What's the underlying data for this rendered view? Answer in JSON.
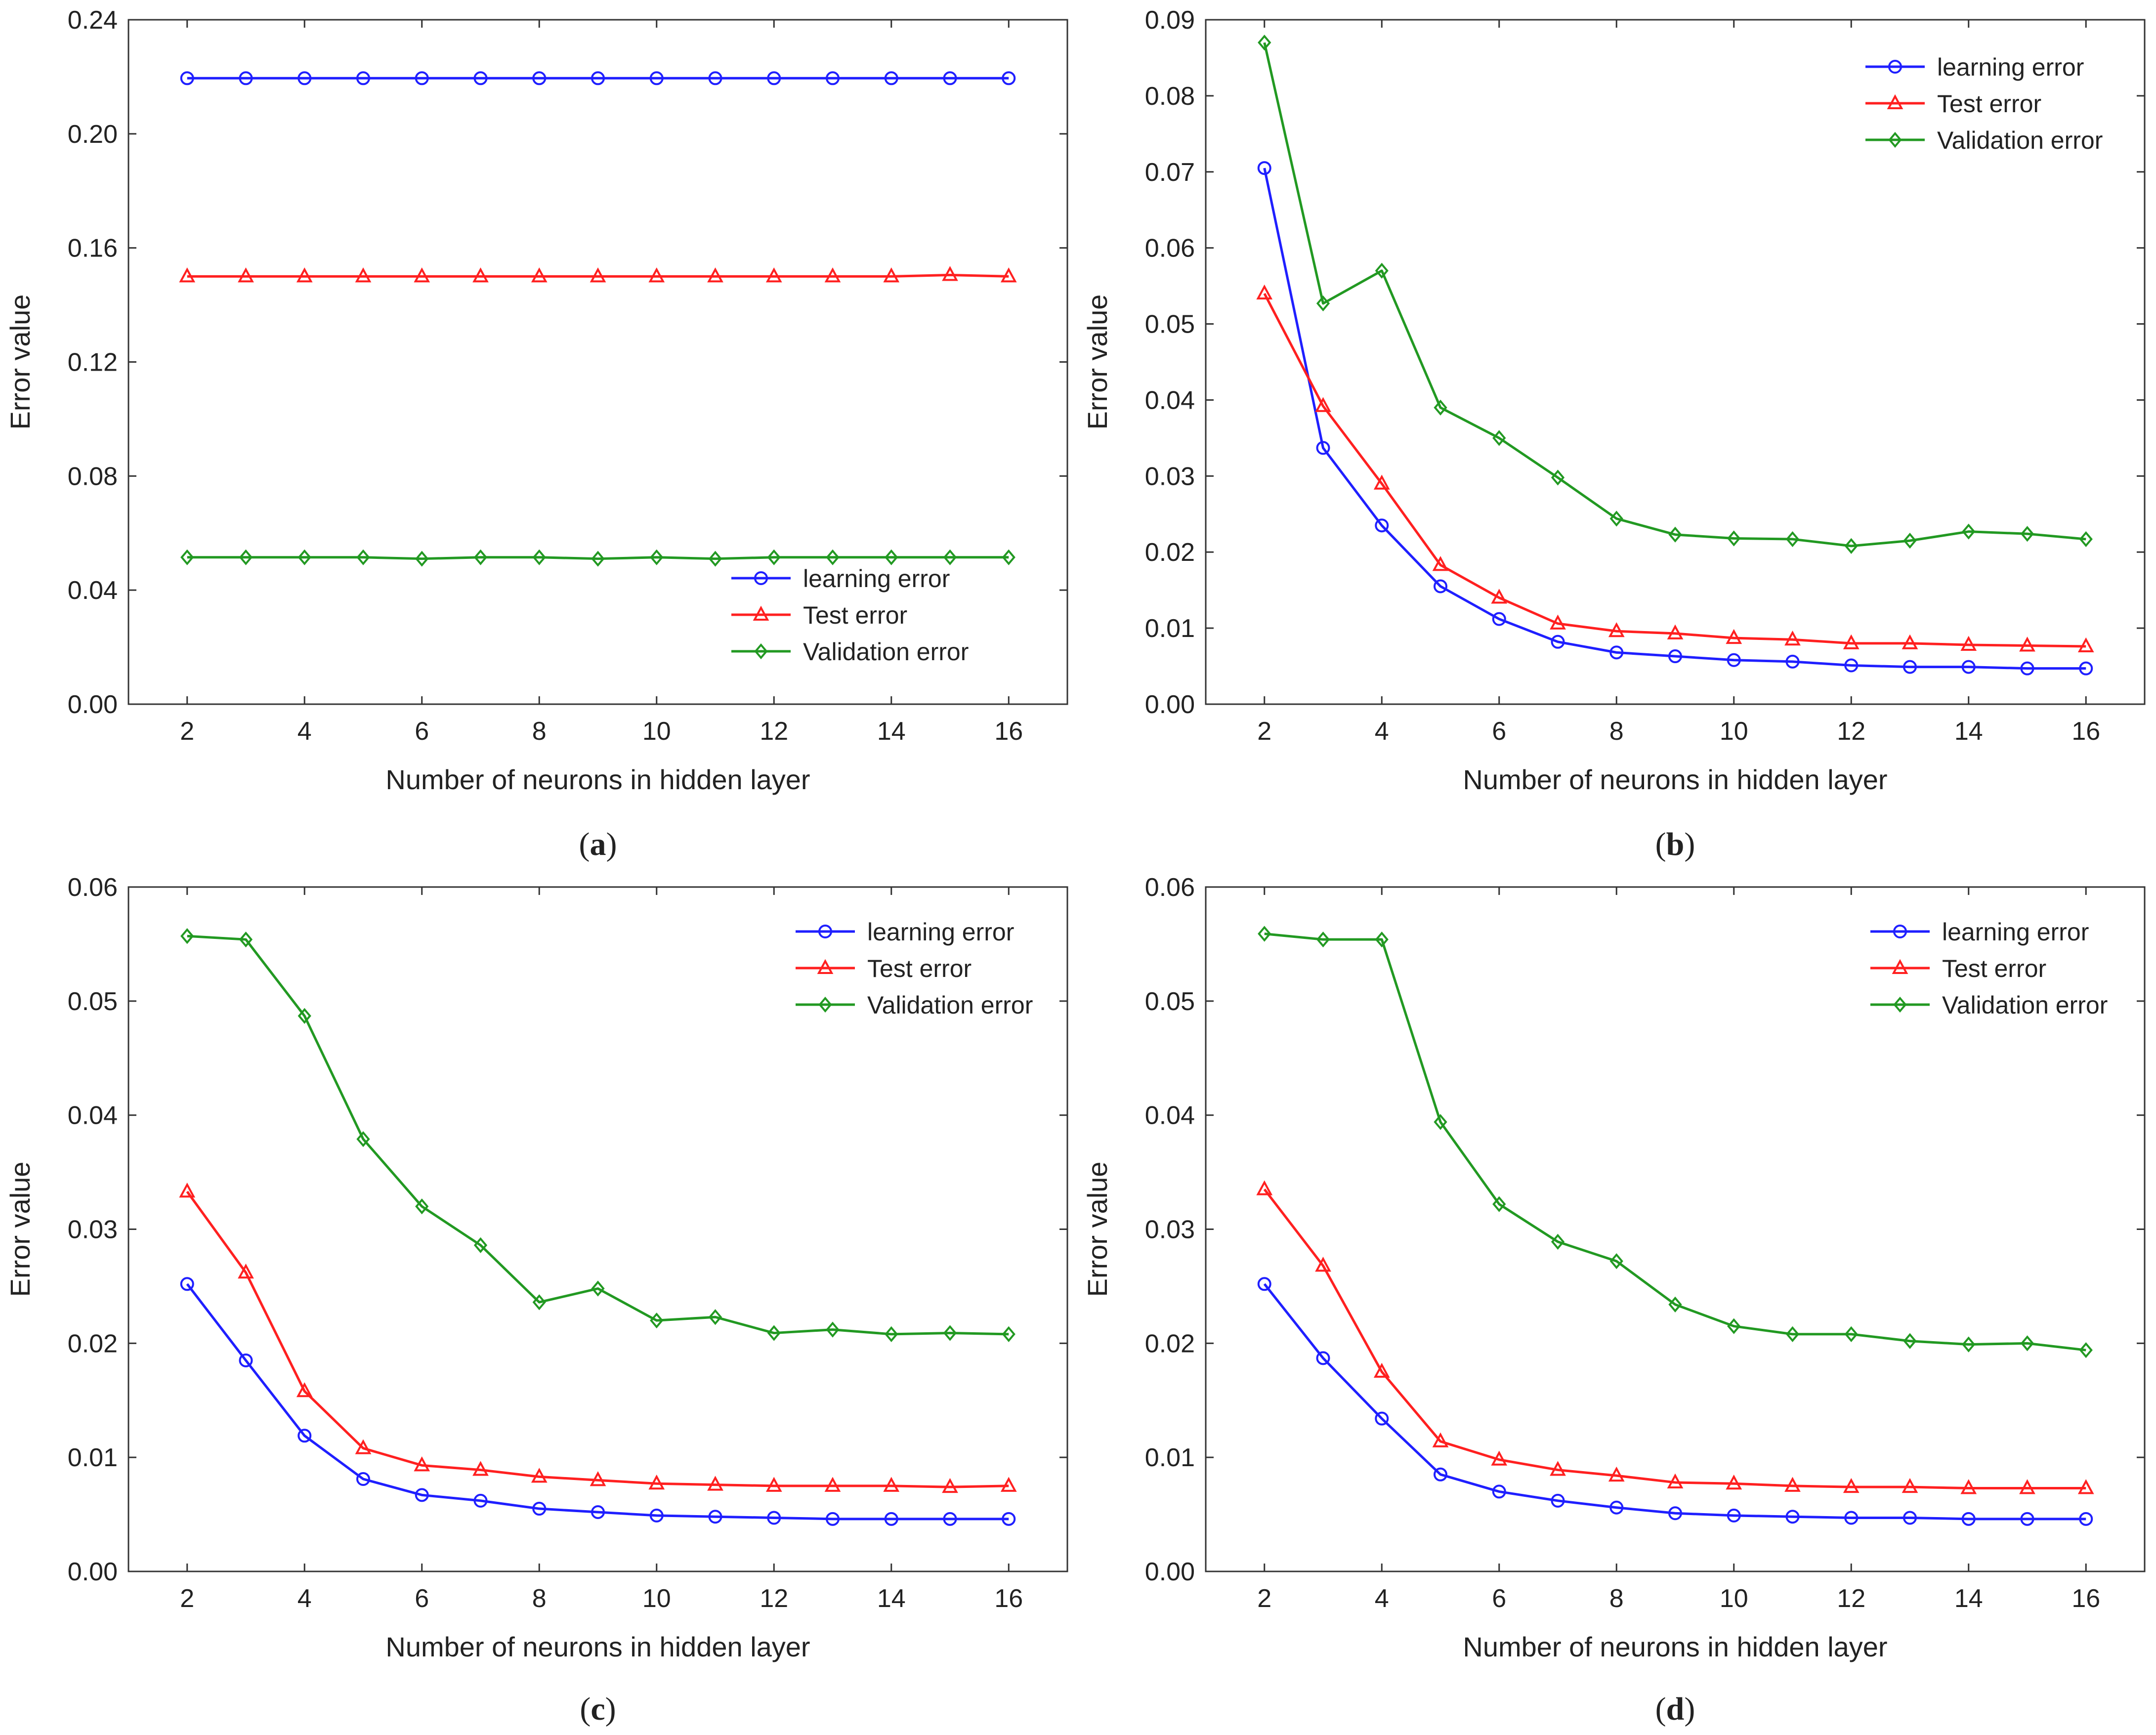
{
  "colors": {
    "learning": "#1f1fff",
    "test": "#ff2020",
    "validation": "#229922",
    "axis": "#333333"
  },
  "chart_data": [
    {
      "id": "a",
      "type": "line",
      "caption": {
        "open": "(",
        "letter": "a",
        "close": ")"
      },
      "xlabel": "Number of neurons in hidden layer",
      "ylabel": "Error value",
      "xlim": [
        1,
        17
      ],
      "ylim": [
        0,
        0.24
      ],
      "xticks": [
        "2",
        "4",
        "6",
        "8",
        "10",
        "12",
        "14",
        "16"
      ],
      "yticks": [
        "0.00",
        "0.04",
        "0.08",
        "0.12",
        "0.16",
        "0.20",
        "0.24"
      ],
      "legend_position": "bottom-right",
      "x": [
        2,
        3,
        4,
        5,
        6,
        7,
        8,
        9,
        10,
        11,
        12,
        13,
        14,
        15,
        16
      ],
      "series": [
        {
          "name": "learning error",
          "marker": "circle",
          "values": [
            0.2195,
            0.2195,
            0.2195,
            0.2195,
            0.2195,
            0.2195,
            0.2195,
            0.2195,
            0.2195,
            0.2195,
            0.2195,
            0.2195,
            0.2195,
            0.2195,
            0.2195
          ]
        },
        {
          "name": "Test error",
          "marker": "triangle",
          "values": [
            0.15,
            0.15,
            0.15,
            0.15,
            0.15,
            0.15,
            0.15,
            0.15,
            0.15,
            0.15,
            0.15,
            0.15,
            0.15,
            0.1505,
            0.15
          ]
        },
        {
          "name": "Validation error",
          "marker": "diamond",
          "values": [
            0.0515,
            0.0515,
            0.0515,
            0.0515,
            0.051,
            0.0515,
            0.0515,
            0.051,
            0.0515,
            0.051,
            0.0515,
            0.0515,
            0.0515,
            0.0515,
            0.0515
          ]
        }
      ]
    },
    {
      "id": "b",
      "type": "line",
      "caption": {
        "open": "(",
        "letter": "b",
        "close": ")"
      },
      "xlabel": "Number of neurons in hidden layer",
      "ylabel": "Error value",
      "xlim": [
        1,
        17
      ],
      "ylim": [
        0,
        0.09
      ],
      "xticks": [
        "2",
        "4",
        "6",
        "8",
        "10",
        "12",
        "14",
        "16"
      ],
      "yticks": [
        "0.00",
        "0.01",
        "0.02",
        "0.03",
        "0.04",
        "0.05",
        "0.06",
        "0.07",
        "0.08",
        "0.09"
      ],
      "legend_position": "top-right",
      "x": [
        2,
        3,
        4,
        5,
        6,
        7,
        8,
        9,
        10,
        11,
        12,
        13,
        14,
        15,
        16
      ],
      "series": [
        {
          "name": "learning error",
          "marker": "circle",
          "values": [
            0.0705,
            0.0337,
            0.0235,
            0.0155,
            0.0112,
            0.0082,
            0.0068,
            0.0063,
            0.0058,
            0.0056,
            0.0051,
            0.0049,
            0.0049,
            0.0047,
            0.0047
          ]
        },
        {
          "name": "Test error",
          "marker": "triangle",
          "values": [
            0.054,
            0.0392,
            0.029,
            0.0183,
            0.014,
            0.0106,
            0.0096,
            0.0093,
            0.0087,
            0.0085,
            0.008,
            0.008,
            0.0078,
            0.0077,
            0.0076
          ]
        },
        {
          "name": "Validation error",
          "marker": "diamond",
          "values": [
            0.087,
            0.0527,
            0.057,
            0.039,
            0.035,
            0.0298,
            0.0244,
            0.0223,
            0.0218,
            0.0217,
            0.0208,
            0.0215,
            0.0227,
            0.0224,
            0.0217
          ]
        }
      ]
    },
    {
      "id": "c",
      "type": "line",
      "caption": {
        "open": "(",
        "letter": "c",
        "close": ")"
      },
      "xlabel": "Number of neurons in hidden layer",
      "ylabel": "Error value",
      "xlim": [
        1,
        17
      ],
      "ylim": [
        0,
        0.06
      ],
      "xticks": [
        "2",
        "4",
        "6",
        "8",
        "10",
        "12",
        "14",
        "16"
      ],
      "yticks": [
        "0.00",
        "0.01",
        "0.02",
        "0.03",
        "0.04",
        "0.05",
        "0.06"
      ],
      "legend_position": "top-right",
      "x": [
        2,
        3,
        4,
        5,
        6,
        7,
        8,
        9,
        10,
        11,
        12,
        13,
        14,
        15,
        16
      ],
      "series": [
        {
          "name": "learning error",
          "marker": "circle",
          "values": [
            0.0252,
            0.0185,
            0.0119,
            0.0081,
            0.0067,
            0.0062,
            0.0055,
            0.0052,
            0.0049,
            0.0048,
            0.0047,
            0.0046,
            0.0046,
            0.0046,
            0.0046
          ]
        },
        {
          "name": "Test error",
          "marker": "triangle",
          "values": [
            0.0333,
            0.0262,
            0.0158,
            0.0108,
            0.0093,
            0.0089,
            0.0083,
            0.008,
            0.0077,
            0.0076,
            0.0075,
            0.0075,
            0.0075,
            0.0074,
            0.0075
          ]
        },
        {
          "name": "Validation error",
          "marker": "diamond",
          "values": [
            0.0557,
            0.0554,
            0.0487,
            0.0379,
            0.032,
            0.0286,
            0.0236,
            0.0248,
            0.022,
            0.0223,
            0.0209,
            0.0212,
            0.0208,
            0.0209,
            0.0208
          ]
        }
      ]
    },
    {
      "id": "d",
      "type": "line",
      "caption": {
        "open": "(",
        "letter": "d",
        "close": ")"
      },
      "xlabel": "Number of neurons in hidden layer",
      "ylabel": "Error value",
      "xlim": [
        1,
        17
      ],
      "ylim": [
        0,
        0.06
      ],
      "xticks": [
        "2",
        "4",
        "6",
        "8",
        "10",
        "12",
        "14",
        "16"
      ],
      "yticks": [
        "0.00",
        "0.01",
        "0.02",
        "0.03",
        "0.04",
        "0.05",
        "0.06"
      ],
      "legend_position": "top-right",
      "x": [
        2,
        3,
        4,
        5,
        6,
        7,
        8,
        9,
        10,
        11,
        12,
        13,
        14,
        15,
        16
      ],
      "series": [
        {
          "name": "learning error",
          "marker": "circle",
          "values": [
            0.0252,
            0.0187,
            0.0134,
            0.0085,
            0.007,
            0.0062,
            0.0056,
            0.0051,
            0.0049,
            0.0048,
            0.0047,
            0.0047,
            0.0046,
            0.0046,
            0.0046
          ]
        },
        {
          "name": "Test error",
          "marker": "triangle",
          "values": [
            0.0335,
            0.0268,
            0.0175,
            0.0114,
            0.0098,
            0.0089,
            0.0084,
            0.0078,
            0.0077,
            0.0075,
            0.0074,
            0.0074,
            0.0073,
            0.0073,
            0.0073
          ]
        },
        {
          "name": "Validation error",
          "marker": "diamond",
          "values": [
            0.0559,
            0.0554,
            0.0554,
            0.0394,
            0.0322,
            0.0289,
            0.0272,
            0.0234,
            0.0215,
            0.0208,
            0.0208,
            0.0202,
            0.0199,
            0.02,
            0.0194
          ]
        }
      ]
    }
  ]
}
